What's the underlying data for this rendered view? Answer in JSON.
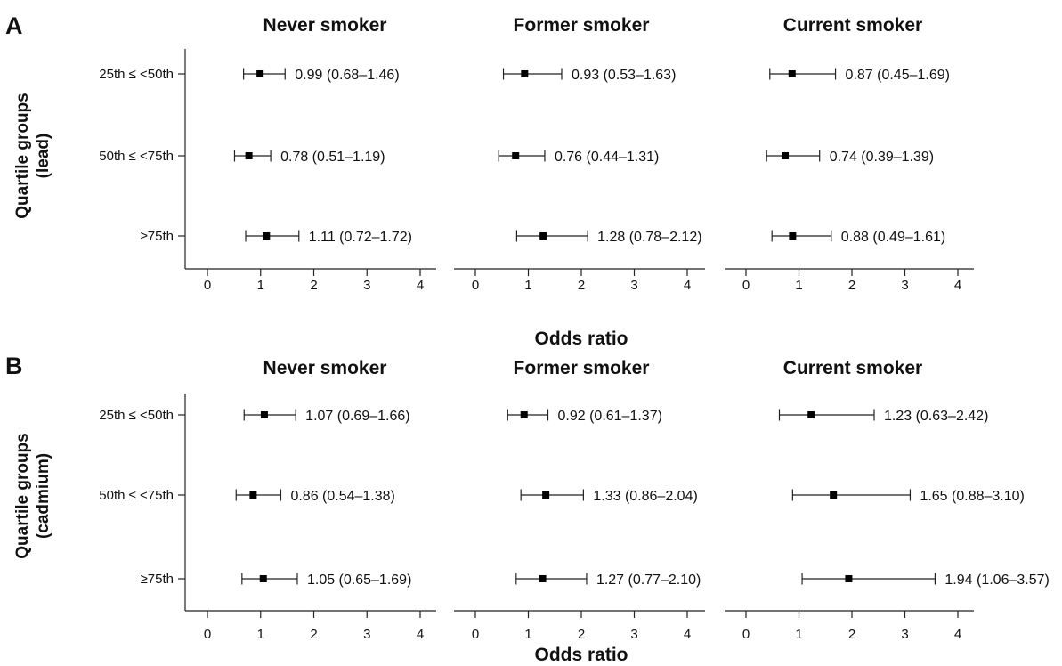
{
  "panel_labels": [
    "A",
    "B"
  ],
  "row_titles": [
    [
      "Quartile groups",
      "(lead)"
    ],
    [
      "Quartile groups",
      "(cadmium)"
    ]
  ],
  "column_titles": [
    "Never smoker",
    "Former smoker",
    "Current smoker"
  ],
  "xlabel": "Odds ratio",
  "category_labels": [
    "25th ≤ <50th",
    "50th ≤ <75th",
    "≥75th"
  ],
  "x_ticks": [
    "0",
    "1",
    "2",
    "3",
    "4"
  ],
  "chart_data": [
    {
      "type": "forest",
      "panel": "A",
      "ylabel": "Quartile groups (lead)",
      "xlabel": "Odds ratio",
      "xlim": [
        -0.4,
        4.2
      ],
      "x_ticks": [
        0,
        1,
        2,
        3,
        4
      ],
      "categories": [
        "25th ≤ <50th",
        "50th ≤ <75th",
        "≥75th"
      ],
      "groups": [
        {
          "name": "Never smoker",
          "points": [
            {
              "or": 0.99,
              "lower": 0.68,
              "upper": 1.46,
              "label": "0.99 (0.68–1.46)"
            },
            {
              "or": 0.78,
              "lower": 0.51,
              "upper": 1.19,
              "label": "0.78 (0.51–1.19)"
            },
            {
              "or": 1.11,
              "lower": 0.72,
              "upper": 1.72,
              "label": "1.11 (0.72–1.72)"
            }
          ]
        },
        {
          "name": "Former smoker",
          "points": [
            {
              "or": 0.93,
              "lower": 0.53,
              "upper": 1.63,
              "label": "0.93 (0.53–1.63)"
            },
            {
              "or": 0.76,
              "lower": 0.44,
              "upper": 1.31,
              "label": "0.76 (0.44–1.31)"
            },
            {
              "or": 1.28,
              "lower": 0.78,
              "upper": 2.12,
              "label": "1.28 (0.78–2.12)"
            }
          ]
        },
        {
          "name": "Current smoker",
          "points": [
            {
              "or": 0.87,
              "lower": 0.45,
              "upper": 1.69,
              "label": "0.87 (0.45–1.69)"
            },
            {
              "or": 0.74,
              "lower": 0.39,
              "upper": 1.39,
              "label": "0.74 (0.39–1.39)"
            },
            {
              "or": 0.88,
              "lower": 0.49,
              "upper": 1.61,
              "label": "0.88 (0.49–1.61)"
            }
          ]
        }
      ]
    },
    {
      "type": "forest",
      "panel": "B",
      "ylabel": "Quartile groups (cadmium)",
      "xlabel": "Odds ratio",
      "xlim": [
        -0.4,
        4.2
      ],
      "x_ticks": [
        0,
        1,
        2,
        3,
        4
      ],
      "categories": [
        "25th ≤ <50th",
        "50th ≤ <75th",
        "≥75th"
      ],
      "groups": [
        {
          "name": "Never smoker",
          "points": [
            {
              "or": 1.07,
              "lower": 0.69,
              "upper": 1.66,
              "label": "1.07 (0.69–1.66)"
            },
            {
              "or": 0.86,
              "lower": 0.54,
              "upper": 1.38,
              "label": "0.86 (0.54–1.38)"
            },
            {
              "or": 1.05,
              "lower": 0.65,
              "upper": 1.69,
              "label": "1.05 (0.65–1.69)"
            }
          ]
        },
        {
          "name": "Former smoker",
          "points": [
            {
              "or": 0.92,
              "lower": 0.61,
              "upper": 1.37,
              "label": "0.92 (0.61–1.37)"
            },
            {
              "or": 1.33,
              "lower": 0.86,
              "upper": 2.04,
              "label": "1.33 (0.86–2.04)"
            },
            {
              "or": 1.27,
              "lower": 0.77,
              "upper": 2.1,
              "label": "1.27 (0.77–2.10)"
            }
          ]
        },
        {
          "name": "Current smoker",
          "points": [
            {
              "or": 1.23,
              "lower": 0.63,
              "upper": 2.42,
              "label": "1.23 (0.63–2.42)"
            },
            {
              "or": 1.65,
              "lower": 0.88,
              "upper": 3.1,
              "label": "1.65 (0.88–3.10)"
            },
            {
              "or": 1.94,
              "lower": 1.06,
              "upper": 3.57,
              "label": "1.94 (1.06–3.57)"
            }
          ]
        }
      ]
    }
  ]
}
